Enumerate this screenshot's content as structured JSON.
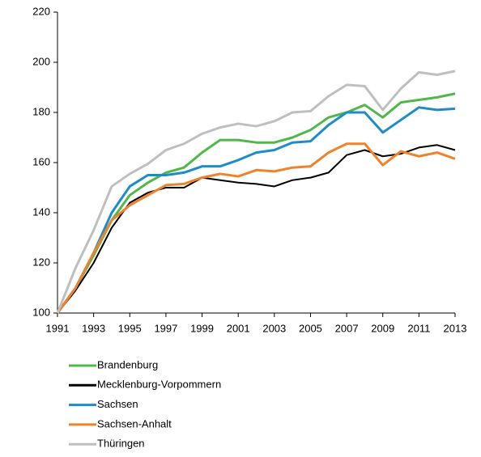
{
  "chart_data": {
    "type": "line",
    "x": [
      1991,
      1992,
      1993,
      1994,
      1995,
      1996,
      1997,
      1998,
      1999,
      2000,
      2001,
      2002,
      2003,
      2004,
      2005,
      2006,
      2007,
      2008,
      2009,
      2010,
      2011,
      2012,
      2013
    ],
    "xlim": [
      1991,
      2013
    ],
    "xticks": [
      1991,
      1993,
      1995,
      1997,
      1999,
      2001,
      2003,
      2005,
      2007,
      2009,
      2011,
      2013
    ],
    "ylim": [
      100,
      220
    ],
    "yticks": [
      100,
      120,
      140,
      160,
      180,
      200,
      220
    ],
    "series": [
      {
        "name": "Brandenburg",
        "color": "#4fb848",
        "values": [
          100,
          110,
          123,
          137,
          147,
          152,
          156,
          158,
          164,
          169,
          169,
          168,
          168,
          170,
          173,
          178,
          180,
          183,
          178,
          184,
          185,
          186,
          187.5
        ]
      },
      {
        "name": "Mecklenburg-Vorpommern",
        "color": "#000000",
        "values": [
          100,
          109,
          120,
          134,
          144,
          148,
          150,
          150,
          154,
          153,
          152,
          151.5,
          150.5,
          153,
          154,
          156,
          163,
          165,
          162.5,
          163.5,
          166,
          167,
          165
        ]
      },
      {
        "name": "Sachsen",
        "color": "#1b8ccc",
        "values": [
          100,
          110,
          124,
          140,
          150.5,
          155,
          155,
          156,
          158.5,
          158.5,
          161,
          164,
          165,
          168,
          168.5,
          175,
          180,
          180,
          172,
          177,
          182,
          181,
          181.5
        ]
      },
      {
        "name": "Sachsen-Anhalt",
        "color": "#f0822a",
        "values": [
          100,
          110,
          124,
          137,
          143,
          147,
          151,
          151.5,
          154,
          155.5,
          154.5,
          157,
          156.5,
          158,
          158.5,
          164,
          167.5,
          167.5,
          159,
          164.5,
          162.5,
          164,
          161.5
        ]
      },
      {
        "name": "Thüringen",
        "color": "#bfbfbf",
        "values": [
          100,
          118,
          133,
          150.5,
          155.5,
          159.5,
          165,
          167.5,
          171.5,
          174,
          175.5,
          174.5,
          176.5,
          180,
          180.5,
          186.5,
          191,
          190.5,
          181,
          189.5,
          196,
          195,
          196.5
        ]
      }
    ]
  }
}
